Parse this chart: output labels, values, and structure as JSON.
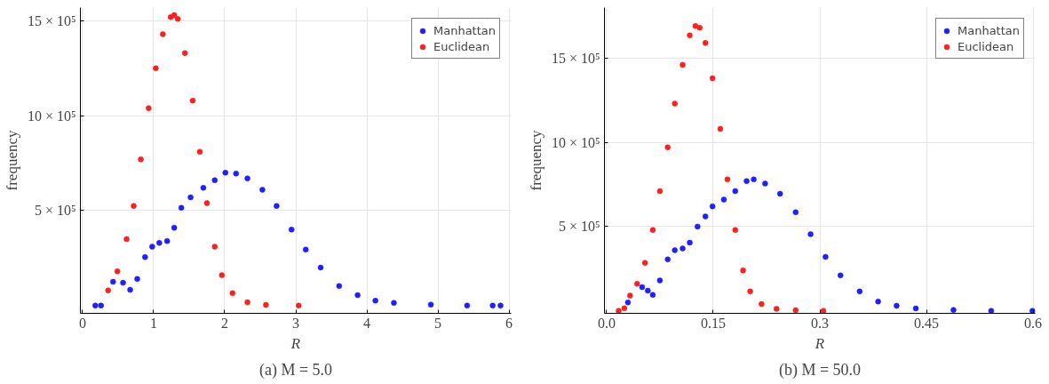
{
  "chart_data": [
    {
      "type": "scatter",
      "title": "(a) M = 5.0",
      "xlabel": "R",
      "ylabel": "frequency",
      "xlim": [
        -0.03,
        6.03
      ],
      "ylim": [
        -41000,
        1570000
      ],
      "xticks": [
        0,
        1,
        2,
        3,
        4,
        5,
        6
      ],
      "yticks": [
        {
          "value": 500000,
          "label": "5 × 10⁵"
        },
        {
          "value": 1000000,
          "label": "10 × 10⁵"
        },
        {
          "value": 1500000,
          "label": "15 × 10⁵"
        }
      ],
      "grid": true,
      "legend": "top right",
      "marker": "circle",
      "series": [
        {
          "name": "Manhattan",
          "color": "#1f1fff",
          "x": [
            0.18,
            0.26,
            0.43,
            0.57,
            0.67,
            0.77,
            0.88,
            0.98,
            1.08,
            1.19,
            1.29,
            1.39,
            1.52,
            1.7,
            1.86,
            2.01,
            2.16,
            2.32,
            2.53,
            2.73,
            2.94,
            3.14,
            3.35,
            3.61,
            3.87,
            4.12,
            4.38,
            4.9,
            5.41,
            5.77,
            5.88
          ],
          "values": [
            0,
            0,
            125000,
            120000,
            83000,
            140000,
            255000,
            310000,
            330000,
            340000,
            410000,
            515000,
            570000,
            620000,
            660000,
            700000,
            695000,
            670000,
            610000,
            525000,
            400000,
            295000,
            200000,
            103000,
            55000,
            26000,
            14000,
            5000,
            0,
            0,
            0
          ]
        },
        {
          "name": "Euclidean",
          "color": "#ff1f1f",
          "x": [
            0.36,
            0.49,
            0.62,
            0.72,
            0.82,
            0.93,
            1.03,
            1.13,
            1.24,
            1.29,
            1.34,
            1.44,
            1.55,
            1.65,
            1.75,
            1.86,
            1.96,
            2.11,
            2.32,
            2.58,
            3.04
          ],
          "values": [
            80000,
            180000,
            350000,
            525000,
            770000,
            1040000,
            1250000,
            1430000,
            1520000,
            1530000,
            1510000,
            1330000,
            1080000,
            810000,
            540000,
            310000,
            160000,
            65000,
            17000,
            3000,
            0
          ]
        }
      ]
    },
    {
      "type": "scatter",
      "title": "(b) M = 50.0",
      "xlabel": "R",
      "ylabel": "frequency",
      "xlim": [
        -0.003,
        0.603
      ],
      "ylim": [
        -15000,
        1800000
      ],
      "xticks": [
        {
          "value": 0,
          "label": "0.0"
        },
        0.15,
        0.3,
        0.45,
        0.6
      ],
      "yticks": [
        {
          "value": 500000,
          "label": "5 × 10⁵"
        },
        {
          "value": 1000000,
          "label": "10 × 10⁵"
        },
        {
          "value": 1500000,
          "label": "15 × 10⁵"
        }
      ],
      "grid": true,
      "legend": "top right",
      "marker": "circle",
      "series": [
        {
          "name": "Manhattan",
          "color": "#1f1fff",
          "x": [
            0.03,
            0.05,
            0.058,
            0.065,
            0.075,
            0.086,
            0.096,
            0.107,
            0.117,
            0.128,
            0.139,
            0.149,
            0.165,
            0.181,
            0.197,
            0.207,
            0.223,
            0.244,
            0.266,
            0.287,
            0.308,
            0.329,
            0.356,
            0.382,
            0.408,
            0.435,
            0.488,
            0.541,
            0.599
          ],
          "values": [
            50000,
            140000,
            120000,
            95000,
            180000,
            305000,
            360000,
            370000,
            405000,
            500000,
            560000,
            620000,
            660000,
            710000,
            770000,
            780000,
            755000,
            695000,
            585000,
            455000,
            320000,
            210000,
            115000,
            55000,
            30000,
            14000,
            5000,
            0,
            0
          ]
        },
        {
          "name": "Euclidean",
          "color": "#ff1f1f",
          "x": [
            0.017,
            0.025,
            0.033,
            0.043,
            0.054,
            0.065,
            0.075,
            0.086,
            0.096,
            0.107,
            0.117,
            0.125,
            0.131,
            0.139,
            0.149,
            0.16,
            0.17,
            0.181,
            0.192,
            0.202,
            0.218,
            0.239,
            0.266,
            0.305
          ],
          "values": [
            0,
            15000,
            90000,
            160000,
            285000,
            480000,
            710000,
            970000,
            1230000,
            1460000,
            1635000,
            1690000,
            1680000,
            1590000,
            1380000,
            1080000,
            780000,
            480000,
            240000,
            115000,
            40000,
            12000,
            3000,
            0
          ]
        }
      ]
    }
  ]
}
